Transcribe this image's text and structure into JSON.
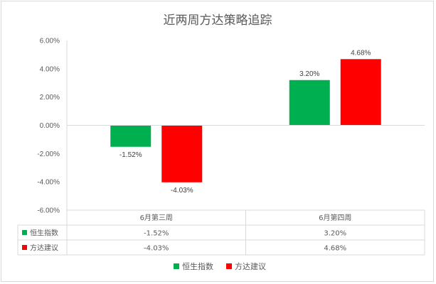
{
  "chart_data": {
    "type": "bar",
    "title": "近两周方达策略追踪",
    "categories": [
      "6月第三周",
      "6月第四周"
    ],
    "series": [
      {
        "name": "恒生指数",
        "values": [
          -1.52,
          3.2
        ],
        "labels": [
          "-1.52%",
          "3.20%"
        ],
        "color": "#00b050"
      },
      {
        "name": "方达建议",
        "values": [
          -4.03,
          4.68
        ],
        "labels": [
          "-4.03%",
          "4.68%"
        ],
        "color": "#ff0000"
      }
    ],
    "ylim": [
      -6,
      6
    ],
    "yticks": [
      6,
      4,
      2,
      0,
      -2,
      -4,
      -6
    ],
    "ytick_labels": [
      "6.00%",
      "4.00%",
      "2.00%",
      "0.00%",
      "-2.00%",
      "-4.00%",
      "-6.00%"
    ],
    "gridlines": false,
    "data_table": true,
    "legend_position": "bottom"
  }
}
